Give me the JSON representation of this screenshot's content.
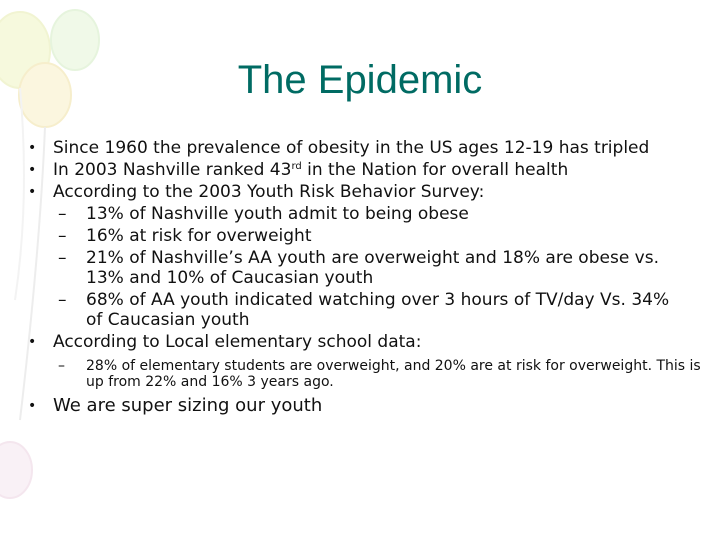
{
  "slide": {
    "title": "The Epidemic",
    "bullets": [
      {
        "text": "Since 1960 the prevalence of obesity in the US ages 12-19 has tripled"
      },
      {
        "parts": [
          "In 2003 Nashville ranked 43",
          "rd",
          " in the Nation for overall health"
        ]
      },
      {
        "text": "According to the 2003 Youth Risk Behavior Survey:",
        "subs": [
          "13% of Nashville youth admit to being obese",
          "16% at risk for overweight",
          "21% of Nashville’s AA youth are overweight and 18% are obese vs. 13% and 10% of Caucasian youth",
          "68% of AA youth indicated watching over 3 hours of TV/day Vs. 34% of Caucasian youth"
        ]
      },
      {
        "text": "According to Local elementary school data:",
        "subs": [
          "28% of elementary students are overweight, and 20% are at risk for overweight.  This is up from 22% and 16% 3 years ago."
        ]
      },
      {
        "text": "We are super sizing our youth"
      }
    ]
  }
}
